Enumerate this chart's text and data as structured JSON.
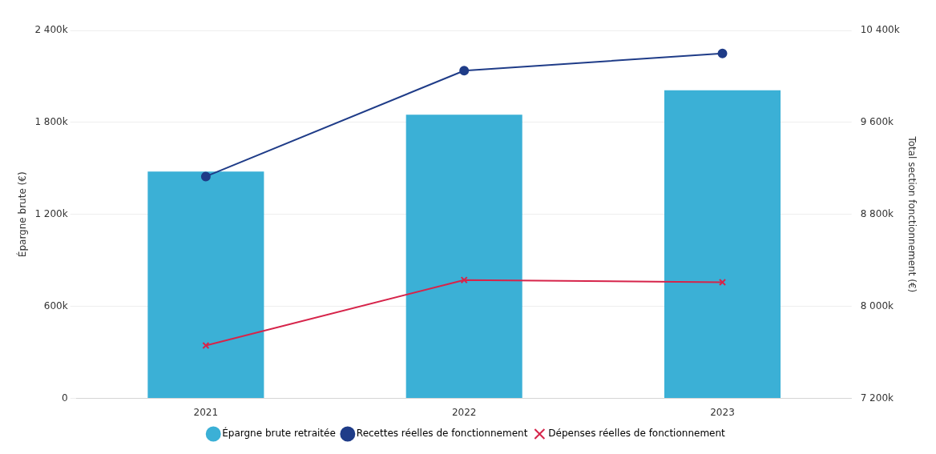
{
  "chart_data": {
    "type": "bar",
    "categories": [
      "2021",
      "2022",
      "2023"
    ],
    "series": [
      {
        "name": "Épargne brute retraitée",
        "color": "#3bb0d6",
        "values": [
          1480000,
          1850000,
          2010000
        ]
      },
      {
        "name": "Recettes réelles de fonctionnement",
        "type": "line",
        "axis": "y2",
        "color": "#1f3c88",
        "marker": "circle",
        "values": [
          9130000,
          10050000,
          10200000
        ]
      },
      {
        "name": "Dépenses réelles de fonctionnement",
        "type": "line",
        "axis": "y2",
        "color": "#d6244a",
        "marker": "cross",
        "values": [
          7660000,
          8230000,
          8210000
        ]
      }
    ],
    "ylabel": "Épargne brute (€)",
    "y2label": "Total section fonctionnement (€)",
    "ylim": [
      0,
      2400000
    ],
    "yticks": [
      0,
      {
        "value": 600000,
        "label": "600k"
      },
      {
        "value": 1200000,
        "label": "1 200k"
      },
      {
        "value": 1800000,
        "label": "1 800k"
      },
      {
        "value": 2400000,
        "label": "2 400k"
      }
    ],
    "y2lim": [
      7200000,
      10400000
    ],
    "y2ticks": [
      {
        "value": 7200000,
        "label": "7 200k"
      },
      {
        "value": 8000000,
        "label": "8 000k"
      },
      {
        "value": 8800000,
        "label": "8 800k"
      },
      {
        "value": 9600000,
        "label": "9 600k"
      },
      {
        "value": 10400000,
        "label": "10 400k"
      }
    ],
    "grid": "y",
    "legend": "bottom"
  }
}
